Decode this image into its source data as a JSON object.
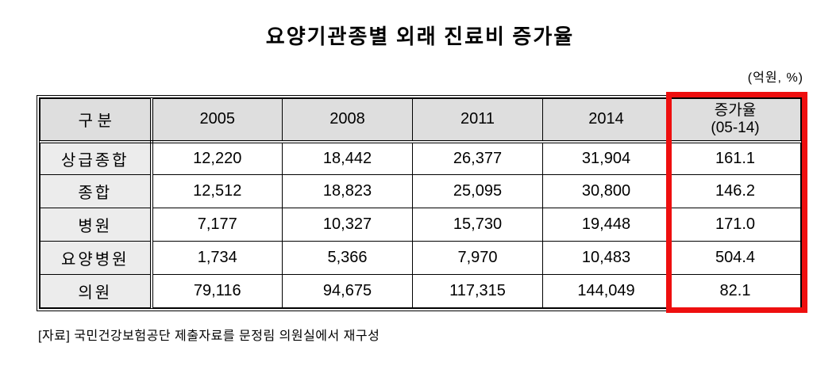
{
  "title": "요양기관종별 외래 진료비 증가율",
  "unit_label": "(억원, %)",
  "highlight_color": "#ee0f0f",
  "table": {
    "columns": {
      "label": "구 분",
      "y2005": "2005",
      "y2008": "2008",
      "y2011": "2011",
      "y2014": "2014",
      "growth": "증가율\n(05-14)"
    },
    "rows": [
      {
        "label": "상급종합",
        "values": [
          "12,220",
          "18,442",
          "26,377",
          "31,904",
          "161.1"
        ]
      },
      {
        "label": "종합",
        "values": [
          "12,512",
          "18,823",
          "25,095",
          "30,800",
          "146.2"
        ]
      },
      {
        "label": "병원",
        "values": [
          "7,177",
          "10,327",
          "15,730",
          "19,448",
          "171.0"
        ]
      },
      {
        "label": "요양병원",
        "values": [
          "1,734",
          "5,366",
          "7,970",
          "10,483",
          "504.4"
        ]
      },
      {
        "label": "의원",
        "values": [
          "79,116",
          "94,675",
          "117,315",
          "144,049",
          "82.1"
        ]
      }
    ]
  },
  "source_note": "[자료] 국민건강보험공단 제출자료를  문정림  의원실에서 재구성",
  "chart_data": {
    "type": "table",
    "title": "요양기관종별 외래 진료비 증가율",
    "unit": "(억원, %)",
    "columns": [
      "구 분",
      "2005",
      "2008",
      "2011",
      "2014",
      "증가율 (05-14)"
    ],
    "rows": [
      [
        "상급종합",
        12220,
        18442,
        26377,
        31904,
        161.1
      ],
      [
        "종합",
        12512,
        18823,
        25095,
        30800,
        146.2
      ],
      [
        "병원",
        7177,
        10327,
        15730,
        19448,
        171.0
      ],
      [
        "요양병원",
        1734,
        5366,
        7970,
        10483,
        504.4
      ],
      [
        "의원",
        79116,
        94675,
        117315,
        144049,
        82.1
      ]
    ],
    "highlighted_column": "증가율 (05-14)",
    "source": "[자료] 국민건강보험공단 제출자료를 문정림 의원실에서 재구성"
  }
}
